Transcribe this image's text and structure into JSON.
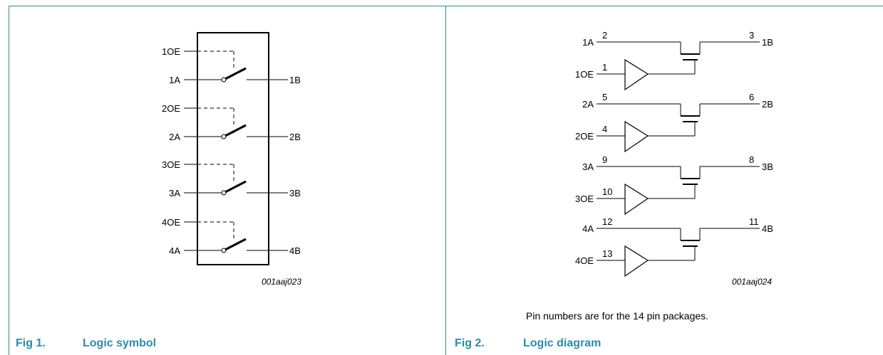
{
  "figure1": {
    "number": "Fig 1.",
    "title": "Logic symbol",
    "code": "001aaj023",
    "oe_labels": [
      "1OE",
      "2OE",
      "3OE",
      "4OE"
    ],
    "a_labels": [
      "1A",
      "2A",
      "3A",
      "4A"
    ],
    "b_labels": [
      "1B",
      "2B",
      "3B",
      "4B"
    ]
  },
  "figure2": {
    "number": "Fig 2.",
    "title": "Logic diagram",
    "code": "001aaj024",
    "note": "Pin numbers are for the 14 pin packages.",
    "channels": [
      {
        "a": "1A",
        "a_pin": "2",
        "b": "1B",
        "b_pin": "3",
        "oe": "1OE",
        "oe_pin": "1"
      },
      {
        "a": "2A",
        "a_pin": "5",
        "b": "2B",
        "b_pin": "6",
        "oe": "2OE",
        "oe_pin": "4"
      },
      {
        "a": "3A",
        "a_pin": "9",
        "b": "3B",
        "b_pin": "8",
        "oe": "3OE",
        "oe_pin": "10"
      },
      {
        "a": "4A",
        "a_pin": "12",
        "b": "4B",
        "b_pin": "11",
        "oe": "4OE",
        "oe_pin": "13"
      }
    ]
  }
}
